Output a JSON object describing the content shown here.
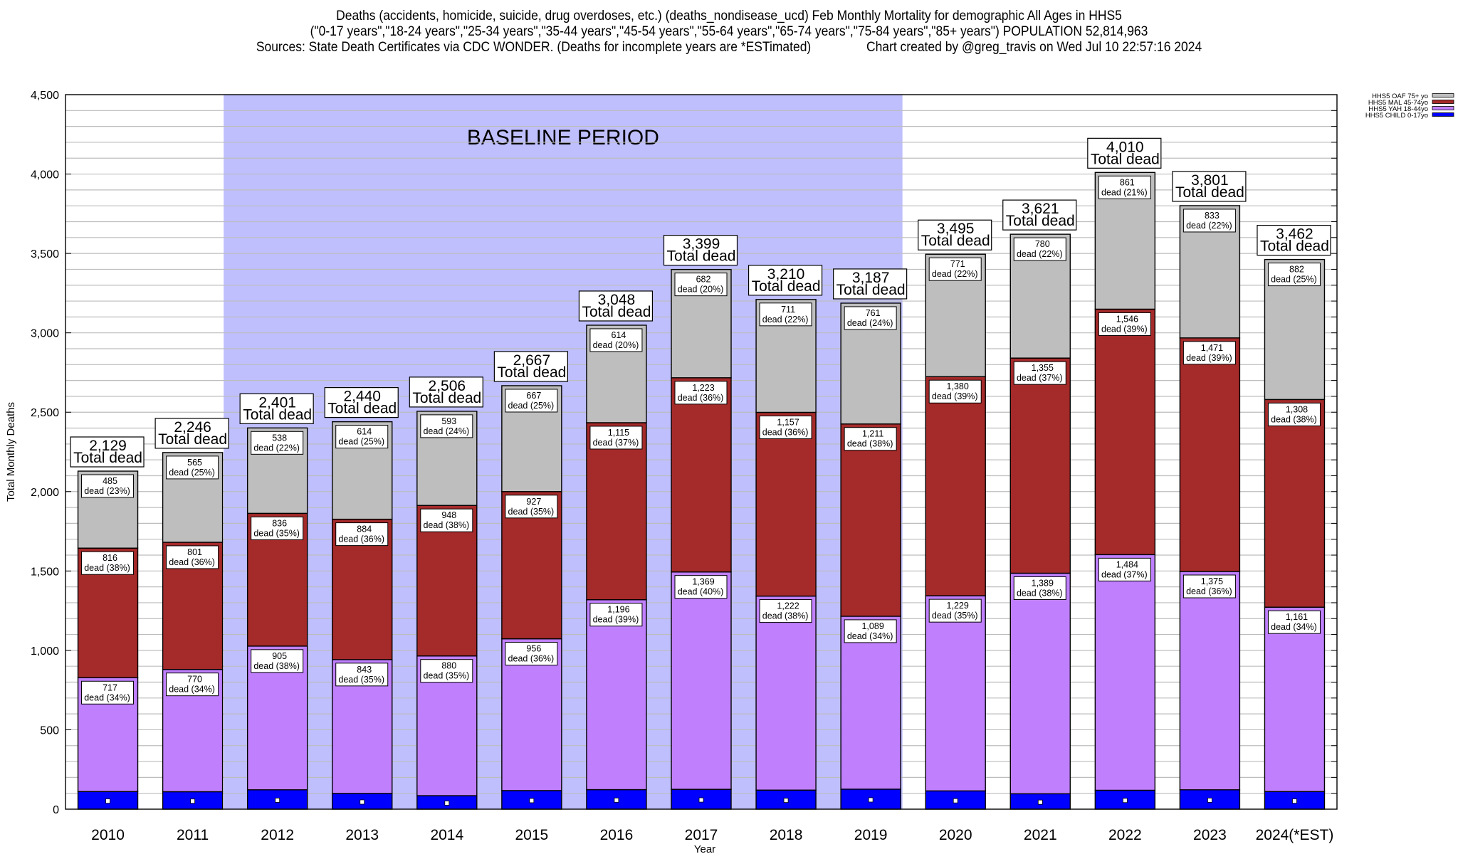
{
  "header": {
    "title_lines": [
      "Deaths (accidents, homicide, suicide, drug overdoses, etc.) (deaths_nondisease_ucd) Feb Monthly Mortality for demographic All Ages in HHS5",
      "(\"0-17 years\",\"18-24 years\",\"25-34 years\",\"35-44 years\",\"45-54 years\",\"55-64 years\",\"65-74 years\",\"75-84 years\",\"85+ years\") POPULATION 52,814,963",
      "Sources: State Death Certificates via CDC WONDER. (Deaths for incomplete years are *ESTimated)                Chart created by @greg_travis on Wed Jul 10 22:57:16 2024"
    ]
  },
  "chart_data": {
    "type": "bar",
    "stacked": true,
    "xlabel": "Year",
    "ylabel": "Total Monthly Deaths",
    "ylim": [
      0,
      4500
    ],
    "yticks": [
      0,
      500,
      1000,
      1500,
      2000,
      2500,
      3000,
      3500,
      4000,
      4500
    ],
    "ytick_labels": [
      "0",
      "500",
      "1,000",
      "1,500",
      "2,000",
      "2,500",
      "3,000",
      "3,500",
      "4,000",
      "4,500"
    ],
    "minor_grid_step": 100,
    "grid": true,
    "legend_position": "top-right",
    "categories": [
      "2010",
      "2011",
      "2012",
      "2013",
      "2014",
      "2015",
      "2016",
      "2017",
      "2018",
      "2019",
      "2020",
      "2021",
      "2022",
      "2023",
      "2024(*EST)"
    ],
    "annotation": {
      "text": "BASELINE PERIOD",
      "from_category": "2012",
      "to_category": "2019",
      "color": "#bfbffe"
    },
    "series": [
      {
        "name": "HHS5 CHILD 0-17yo",
        "color": "#0000fe",
        "values": [
          111,
          110,
          122,
          99,
          85,
          117,
          123,
          125,
          120,
          126,
          115,
          97,
          119,
          122,
          111
        ],
        "labels": null
      },
      {
        "name": "HHS5 YAH 18-44yo",
        "color": "#c080fe",
        "values": [
          717,
          770,
          905,
          843,
          880,
          956,
          1196,
          1369,
          1222,
          1089,
          1229,
          1389,
          1484,
          1375,
          1161
        ],
        "labels": [
          [
            "717",
            "dead (34%)"
          ],
          [
            "770",
            "dead (34%)"
          ],
          [
            "905",
            "dead (38%)"
          ],
          [
            "843",
            "dead (35%)"
          ],
          [
            "880",
            "dead (35%)"
          ],
          [
            "956",
            "dead (36%)"
          ],
          [
            "1,196",
            "dead (39%)"
          ],
          [
            "1,369",
            "dead (40%)"
          ],
          [
            "1,222",
            "dead (38%)"
          ],
          [
            "1,089",
            "dead (34%)"
          ],
          [
            "1,229",
            "dead (35%)"
          ],
          [
            "1,389",
            "dead (38%)"
          ],
          [
            "1,484",
            "dead (37%)"
          ],
          [
            "1,375",
            "dead (36%)"
          ],
          [
            "1,161",
            "dead (34%)"
          ]
        ]
      },
      {
        "name": "HHS5 MAL 45-74yo",
        "color": "#a52a2a",
        "values": [
          816,
          801,
          836,
          884,
          948,
          927,
          1115,
          1223,
          1157,
          1211,
          1380,
          1355,
          1546,
          1471,
          1308
        ],
        "labels": [
          [
            "816",
            "dead (38%)"
          ],
          [
            "801",
            "dead (36%)"
          ],
          [
            "836",
            "dead (35%)"
          ],
          [
            "884",
            "dead (36%)"
          ],
          [
            "948",
            "dead (38%)"
          ],
          [
            "927",
            "dead (35%)"
          ],
          [
            "1,115",
            "dead (37%)"
          ],
          [
            "1,223",
            "dead (36%)"
          ],
          [
            "1,157",
            "dead (36%)"
          ],
          [
            "1,211",
            "dead (38%)"
          ],
          [
            "1,380",
            "dead (39%)"
          ],
          [
            "1,355",
            "dead (37%)"
          ],
          [
            "1,546",
            "dead (39%)"
          ],
          [
            "1,471",
            "dead (39%)"
          ],
          [
            "1,308",
            "dead (38%)"
          ]
        ]
      },
      {
        "name": "HHS5 OAF 75+ yo",
        "color": "#bebebe",
        "values": [
          485,
          565,
          538,
          614,
          593,
          667,
          614,
          682,
          711,
          761,
          771,
          780,
          861,
          833,
          882
        ],
        "labels": [
          [
            "485",
            "dead (23%)"
          ],
          [
            "565",
            "dead (25%)"
          ],
          [
            "538",
            "dead (22%)"
          ],
          [
            "614",
            "dead (25%)"
          ],
          [
            "593",
            "dead (24%)"
          ],
          [
            "667",
            "dead (25%)"
          ],
          [
            "614",
            "dead (20%)"
          ],
          [
            "682",
            "dead (20%)"
          ],
          [
            "711",
            "dead (22%)"
          ],
          [
            "761",
            "dead (24%)"
          ],
          [
            "771",
            "dead (22%)"
          ],
          [
            "780",
            "dead (22%)"
          ],
          [
            "861",
            "dead (21%)"
          ],
          [
            "833",
            "dead (22%)"
          ],
          [
            "882",
            "dead (25%)"
          ]
        ]
      }
    ],
    "legend_order": [
      "HHS5 OAF 75+ yo",
      "HHS5 MAL 45-74yo",
      "HHS5 YAH 18-44yo",
      "HHS5 CHILD 0-17yo"
    ],
    "totals": [
      2129,
      2246,
      2401,
      2440,
      2506,
      2667,
      3048,
      3399,
      3210,
      3187,
      3495,
      3621,
      4010,
      3801,
      3462
    ],
    "total_labels": [
      "2,129",
      "2,246",
      "2,401",
      "2,440",
      "2,506",
      "2,667",
      "3,048",
      "3,399",
      "3,210",
      "3,187",
      "3,495",
      "3,621",
      "4,010",
      "3,801",
      "3,462"
    ],
    "total_suffix": "Total dead"
  }
}
